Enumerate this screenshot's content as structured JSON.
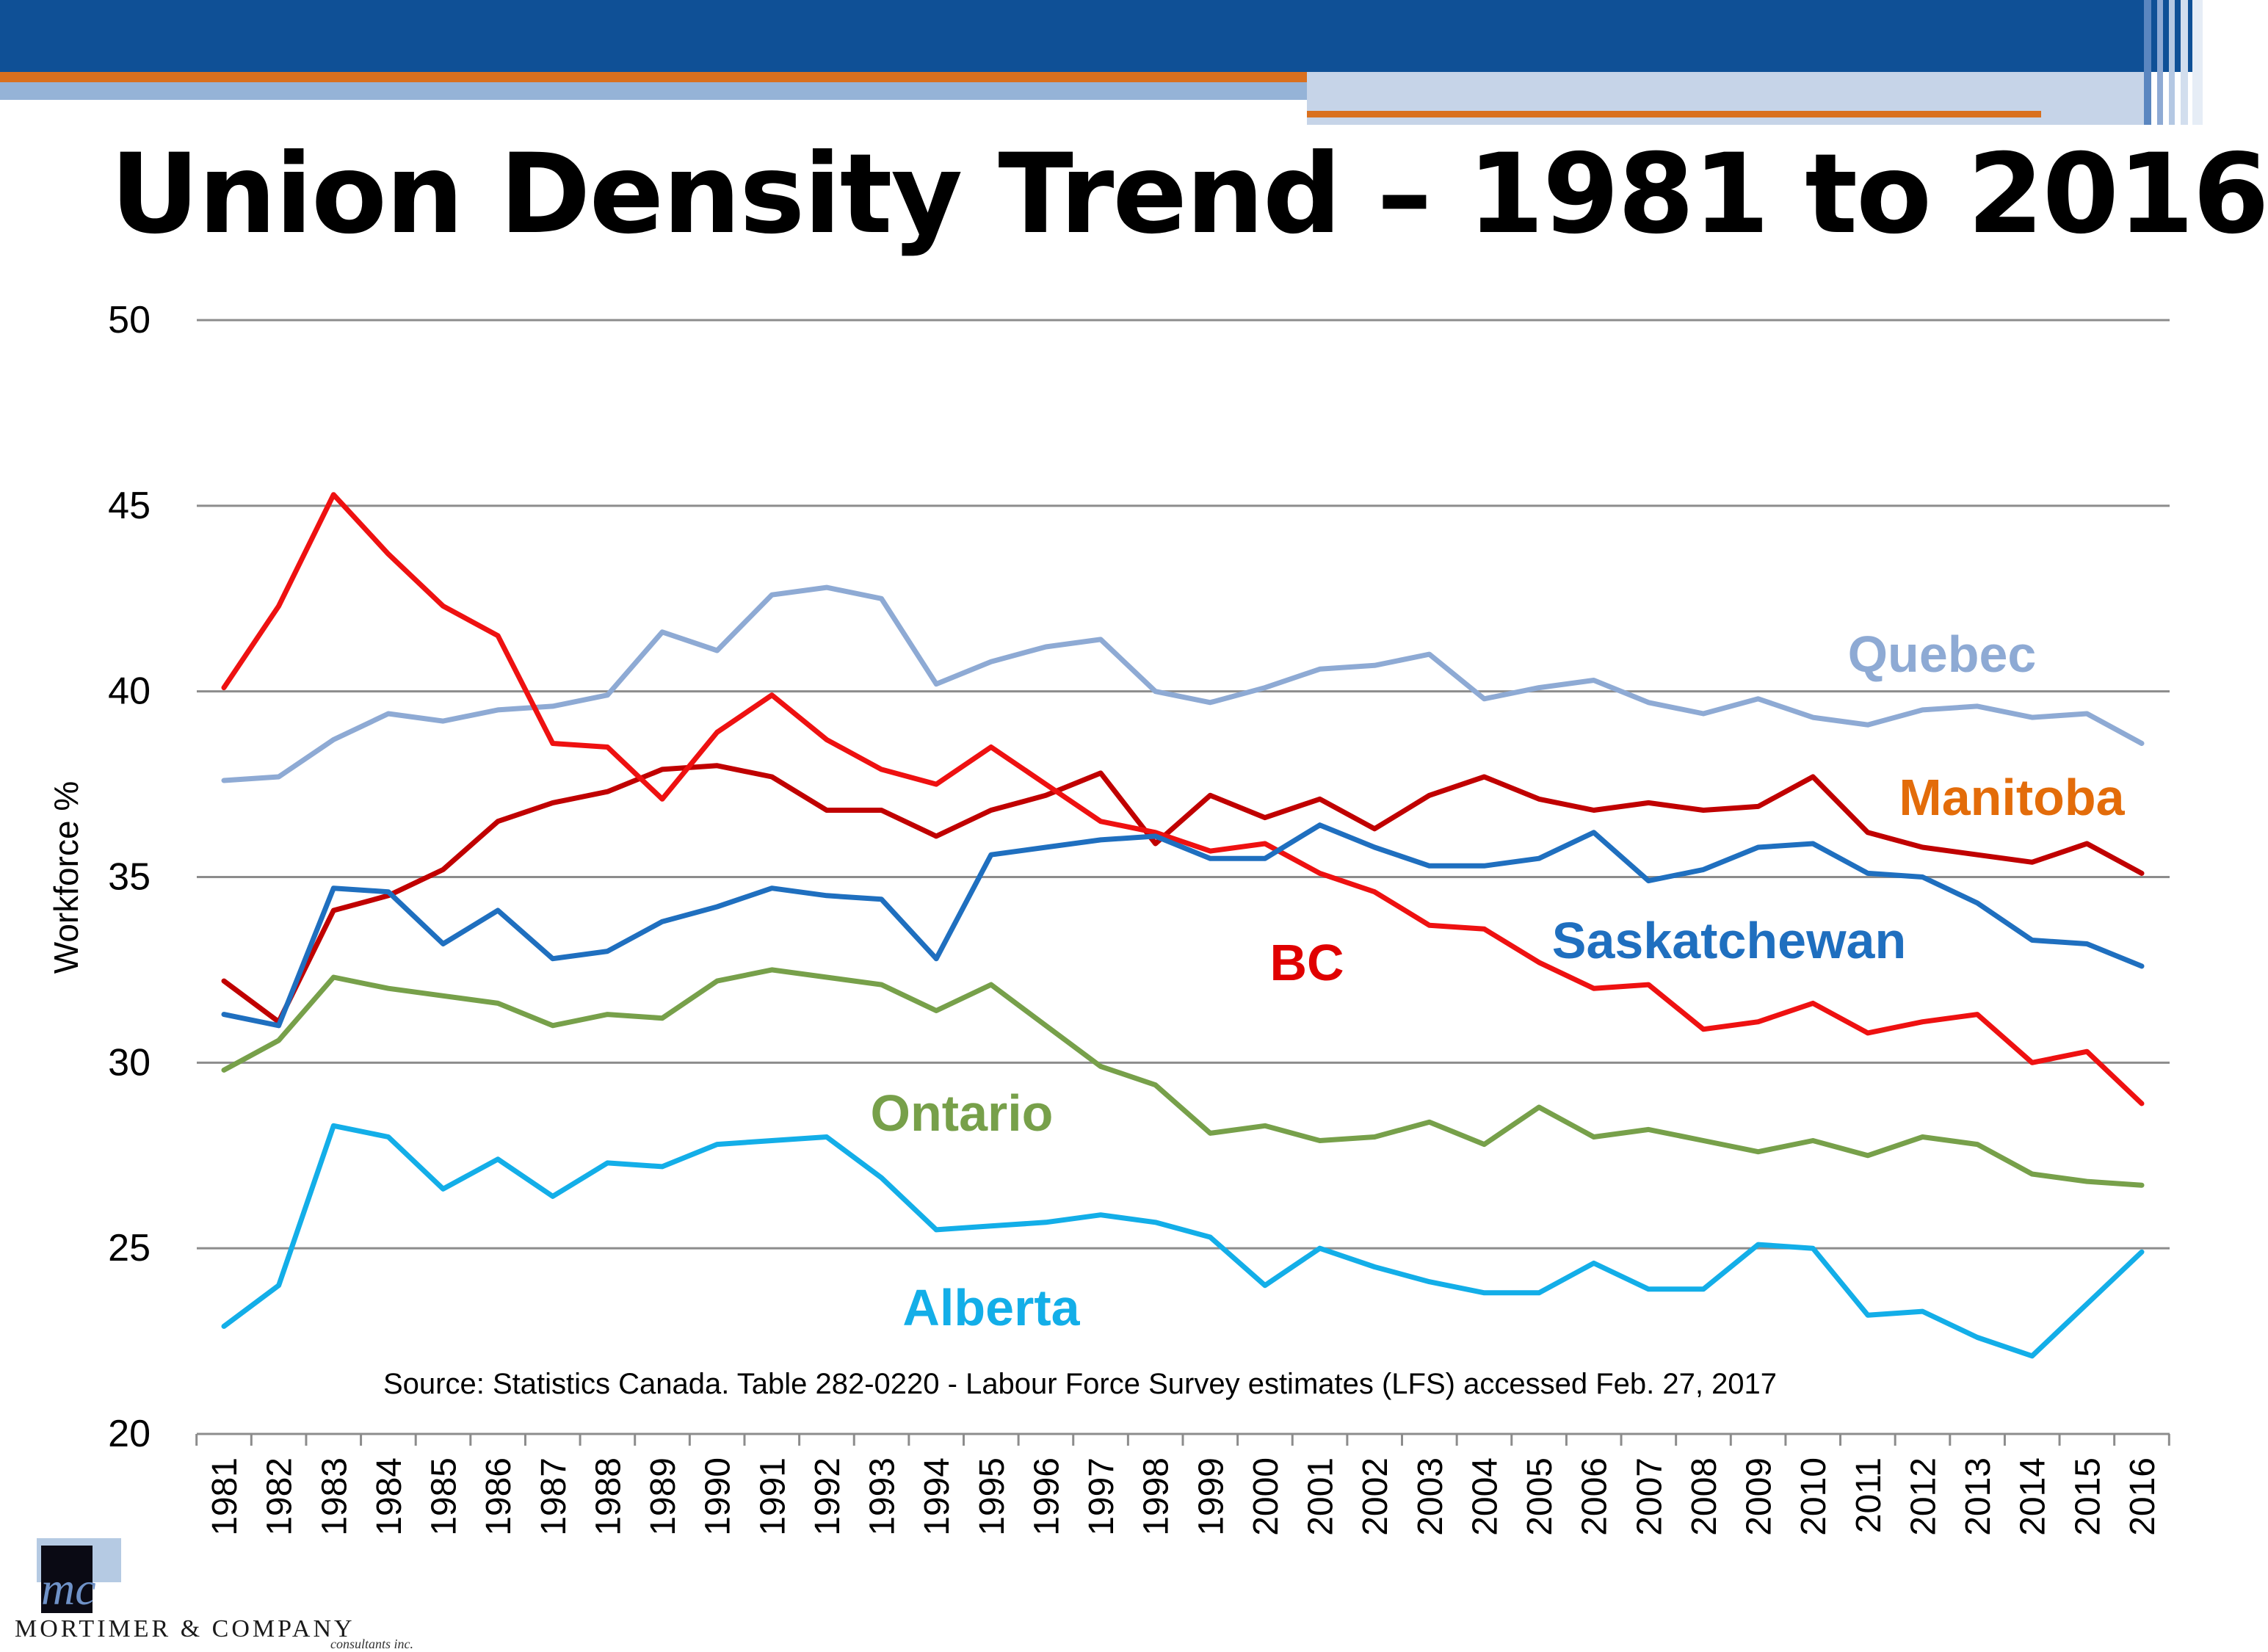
{
  "slide": {
    "title": "Union Density Trend – 1981 to 2016",
    "source": "Source: Statistics Canada. Table 282-0220 - Labour Force Survey estimates (LFS) accessed Feb. 27, 2017"
  },
  "logo": {
    "initials": "mc",
    "name": "MORTIMER & COMPANY",
    "tagline": "consultants inc."
  },
  "colors": {
    "header_blue": "#0f5096",
    "header_orange": "#d9701e",
    "header_light_blue": "#95b3d7",
    "gridline": "#8c8c8c"
  },
  "chart_data": {
    "type": "line",
    "title": "",
    "xlabel": "",
    "ylabel": "Workforce %",
    "ylim": [
      20,
      50
    ],
    "yticks": [
      20,
      25,
      30,
      35,
      40,
      45,
      50
    ],
    "grid": true,
    "legend": "direct labels",
    "x": [
      "1981",
      "1982",
      "1983",
      "1984",
      "1985",
      "1986",
      "1987",
      "1988",
      "1989",
      "1990",
      "1991",
      "1992",
      "1993",
      "1994",
      "1995",
      "1996",
      "1997",
      "1998",
      "1999",
      "2000",
      "2001",
      "2002",
      "2003",
      "2004",
      "2005",
      "2006",
      "2007",
      "2008",
      "2009",
      "2010",
      "2011",
      "2012",
      "2013",
      "2014",
      "2015",
      "2016"
    ],
    "series": [
      {
        "name": "Quebec",
        "color": "#8eaad4",
        "label_color": "#8eaad4",
        "values": [
          37.6,
          37.7,
          38.7,
          39.4,
          39.2,
          39.5,
          39.6,
          39.9,
          41.6,
          41.1,
          42.6,
          42.8,
          42.5,
          40.2,
          40.8,
          41.2,
          41.4,
          40.0,
          39.7,
          40.1,
          40.6,
          40.7,
          41.0,
          39.8,
          40.1,
          40.3,
          39.7,
          39.4,
          39.8,
          39.3,
          39.1,
          39.5,
          39.6,
          39.3,
          39.4,
          38.6
        ]
      },
      {
        "name": "Manitoba",
        "color": "#c00000",
        "label_color": "#e36c0a",
        "values": [
          32.2,
          31.1,
          34.1,
          34.5,
          35.2,
          36.5,
          37.0,
          37.3,
          37.9,
          38.0,
          37.7,
          36.8,
          36.8,
          36.1,
          36.8,
          37.2,
          37.8,
          35.9,
          37.2,
          36.6,
          37.1,
          36.3,
          37.2,
          37.7,
          37.1,
          36.8,
          37.0,
          36.8,
          36.9,
          37.7,
          36.2,
          35.8,
          35.6,
          35.4,
          35.9,
          35.1
        ]
      },
      {
        "name": "BC",
        "color": "#ee1111",
        "label_color": "#e00000",
        "values": [
          40.1,
          42.3,
          45.3,
          43.7,
          42.3,
          41.5,
          38.6,
          38.5,
          37.1,
          38.9,
          39.9,
          38.7,
          37.9,
          37.5,
          38.5,
          37.5,
          36.5,
          36.2,
          35.7,
          35.9,
          35.1,
          34.6,
          33.7,
          33.6,
          32.7,
          32.0,
          32.1,
          30.9,
          31.1,
          31.6,
          30.8,
          31.1,
          31.3,
          30.0,
          30.3,
          28.9
        ]
      },
      {
        "name": "Saskatchewan",
        "color": "#1f6fbf",
        "label_color": "#1f6fbf",
        "values": [
          31.3,
          31.0,
          34.7,
          34.6,
          33.2,
          34.1,
          32.8,
          33.0,
          33.8,
          34.2,
          34.7,
          34.5,
          34.4,
          32.8,
          35.6,
          35.8,
          36.0,
          36.1,
          35.5,
          35.5,
          36.4,
          35.8,
          35.3,
          35.3,
          35.5,
          36.2,
          34.9,
          35.2,
          35.8,
          35.9,
          35.1,
          35.0,
          34.3,
          33.3,
          33.2,
          32.6
        ]
      },
      {
        "name": "Ontario",
        "color": "#77a04a",
        "label_color": "#77a04a",
        "values": [
          29.8,
          30.6,
          32.3,
          32.0,
          31.8,
          31.6,
          31.0,
          31.3,
          31.2,
          32.2,
          32.5,
          32.3,
          32.1,
          31.4,
          32.1,
          31.0,
          29.9,
          29.4,
          28.1,
          28.3,
          27.9,
          28.0,
          28.4,
          27.8,
          28.8,
          28.0,
          28.2,
          27.9,
          27.6,
          27.9,
          27.5,
          28.0,
          27.8,
          27.0,
          26.8,
          26.7
        ]
      },
      {
        "name": "Alberta",
        "color": "#13aee8",
        "label_color": "#13aee8",
        "values": [
          22.9,
          24.0,
          28.3,
          28.0,
          26.6,
          27.4,
          26.4,
          27.3,
          27.2,
          27.8,
          27.9,
          28.0,
          26.9,
          25.5,
          25.6,
          25.7,
          25.9,
          25.7,
          25.3,
          24.0,
          25.0,
          24.5,
          24.1,
          23.8,
          23.8,
          24.6,
          23.9,
          23.9,
          25.1,
          25.0,
          23.2,
          23.3,
          22.6,
          22.1,
          23.5,
          24.9
        ]
      }
    ]
  }
}
